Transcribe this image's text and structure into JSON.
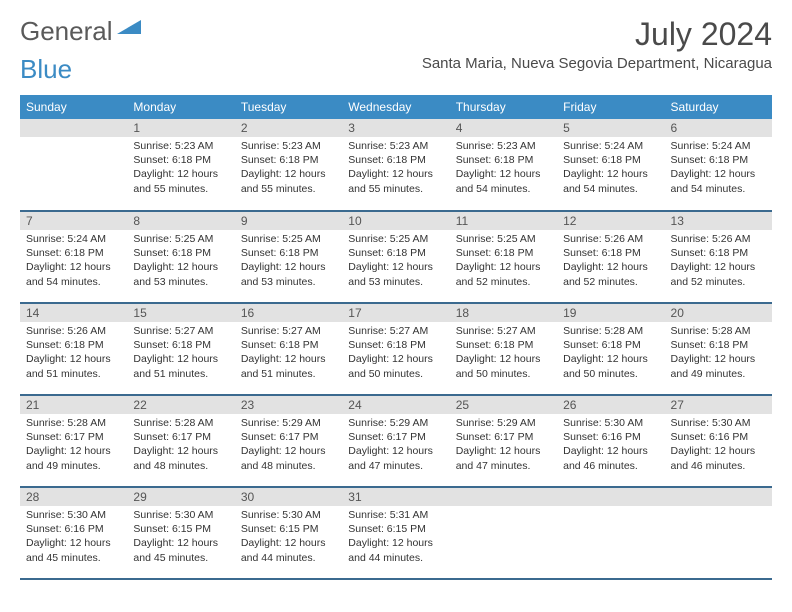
{
  "brand": {
    "part1": "General",
    "part2": "Blue"
  },
  "title": "July 2024",
  "location": "Santa Maria, Nueva Segovia Department, Nicaragua",
  "colors": {
    "header_bg": "#3b8bc4",
    "header_text": "#ffffff",
    "daynum_bg": "#e2e2e2",
    "row_border": "#3b6a8f",
    "text": "#333333",
    "title_text": "#4a4a4a"
  },
  "daysOfWeek": [
    "Sunday",
    "Monday",
    "Tuesday",
    "Wednesday",
    "Thursday",
    "Friday",
    "Saturday"
  ],
  "weeks": [
    [
      {
        "num": "",
        "sunrise": "",
        "sunset": "",
        "daylight": ""
      },
      {
        "num": "1",
        "sunrise": "Sunrise: 5:23 AM",
        "sunset": "Sunset: 6:18 PM",
        "daylight": "Daylight: 12 hours and 55 minutes."
      },
      {
        "num": "2",
        "sunrise": "Sunrise: 5:23 AM",
        "sunset": "Sunset: 6:18 PM",
        "daylight": "Daylight: 12 hours and 55 minutes."
      },
      {
        "num": "3",
        "sunrise": "Sunrise: 5:23 AM",
        "sunset": "Sunset: 6:18 PM",
        "daylight": "Daylight: 12 hours and 55 minutes."
      },
      {
        "num": "4",
        "sunrise": "Sunrise: 5:23 AM",
        "sunset": "Sunset: 6:18 PM",
        "daylight": "Daylight: 12 hours and 54 minutes."
      },
      {
        "num": "5",
        "sunrise": "Sunrise: 5:24 AM",
        "sunset": "Sunset: 6:18 PM",
        "daylight": "Daylight: 12 hours and 54 minutes."
      },
      {
        "num": "6",
        "sunrise": "Sunrise: 5:24 AM",
        "sunset": "Sunset: 6:18 PM",
        "daylight": "Daylight: 12 hours and 54 minutes."
      }
    ],
    [
      {
        "num": "7",
        "sunrise": "Sunrise: 5:24 AM",
        "sunset": "Sunset: 6:18 PM",
        "daylight": "Daylight: 12 hours and 54 minutes."
      },
      {
        "num": "8",
        "sunrise": "Sunrise: 5:25 AM",
        "sunset": "Sunset: 6:18 PM",
        "daylight": "Daylight: 12 hours and 53 minutes."
      },
      {
        "num": "9",
        "sunrise": "Sunrise: 5:25 AM",
        "sunset": "Sunset: 6:18 PM",
        "daylight": "Daylight: 12 hours and 53 minutes."
      },
      {
        "num": "10",
        "sunrise": "Sunrise: 5:25 AM",
        "sunset": "Sunset: 6:18 PM",
        "daylight": "Daylight: 12 hours and 53 minutes."
      },
      {
        "num": "11",
        "sunrise": "Sunrise: 5:25 AM",
        "sunset": "Sunset: 6:18 PM",
        "daylight": "Daylight: 12 hours and 52 minutes."
      },
      {
        "num": "12",
        "sunrise": "Sunrise: 5:26 AM",
        "sunset": "Sunset: 6:18 PM",
        "daylight": "Daylight: 12 hours and 52 minutes."
      },
      {
        "num": "13",
        "sunrise": "Sunrise: 5:26 AM",
        "sunset": "Sunset: 6:18 PM",
        "daylight": "Daylight: 12 hours and 52 minutes."
      }
    ],
    [
      {
        "num": "14",
        "sunrise": "Sunrise: 5:26 AM",
        "sunset": "Sunset: 6:18 PM",
        "daylight": "Daylight: 12 hours and 51 minutes."
      },
      {
        "num": "15",
        "sunrise": "Sunrise: 5:27 AM",
        "sunset": "Sunset: 6:18 PM",
        "daylight": "Daylight: 12 hours and 51 minutes."
      },
      {
        "num": "16",
        "sunrise": "Sunrise: 5:27 AM",
        "sunset": "Sunset: 6:18 PM",
        "daylight": "Daylight: 12 hours and 51 minutes."
      },
      {
        "num": "17",
        "sunrise": "Sunrise: 5:27 AM",
        "sunset": "Sunset: 6:18 PM",
        "daylight": "Daylight: 12 hours and 50 minutes."
      },
      {
        "num": "18",
        "sunrise": "Sunrise: 5:27 AM",
        "sunset": "Sunset: 6:18 PM",
        "daylight": "Daylight: 12 hours and 50 minutes."
      },
      {
        "num": "19",
        "sunrise": "Sunrise: 5:28 AM",
        "sunset": "Sunset: 6:18 PM",
        "daylight": "Daylight: 12 hours and 50 minutes."
      },
      {
        "num": "20",
        "sunrise": "Sunrise: 5:28 AM",
        "sunset": "Sunset: 6:18 PM",
        "daylight": "Daylight: 12 hours and 49 minutes."
      }
    ],
    [
      {
        "num": "21",
        "sunrise": "Sunrise: 5:28 AM",
        "sunset": "Sunset: 6:17 PM",
        "daylight": "Daylight: 12 hours and 49 minutes."
      },
      {
        "num": "22",
        "sunrise": "Sunrise: 5:28 AM",
        "sunset": "Sunset: 6:17 PM",
        "daylight": "Daylight: 12 hours and 48 minutes."
      },
      {
        "num": "23",
        "sunrise": "Sunrise: 5:29 AM",
        "sunset": "Sunset: 6:17 PM",
        "daylight": "Daylight: 12 hours and 48 minutes."
      },
      {
        "num": "24",
        "sunrise": "Sunrise: 5:29 AM",
        "sunset": "Sunset: 6:17 PM",
        "daylight": "Daylight: 12 hours and 47 minutes."
      },
      {
        "num": "25",
        "sunrise": "Sunrise: 5:29 AM",
        "sunset": "Sunset: 6:17 PM",
        "daylight": "Daylight: 12 hours and 47 minutes."
      },
      {
        "num": "26",
        "sunrise": "Sunrise: 5:30 AM",
        "sunset": "Sunset: 6:16 PM",
        "daylight": "Daylight: 12 hours and 46 minutes."
      },
      {
        "num": "27",
        "sunrise": "Sunrise: 5:30 AM",
        "sunset": "Sunset: 6:16 PM",
        "daylight": "Daylight: 12 hours and 46 minutes."
      }
    ],
    [
      {
        "num": "28",
        "sunrise": "Sunrise: 5:30 AM",
        "sunset": "Sunset: 6:16 PM",
        "daylight": "Daylight: 12 hours and 45 minutes."
      },
      {
        "num": "29",
        "sunrise": "Sunrise: 5:30 AM",
        "sunset": "Sunset: 6:15 PM",
        "daylight": "Daylight: 12 hours and 45 minutes."
      },
      {
        "num": "30",
        "sunrise": "Sunrise: 5:30 AM",
        "sunset": "Sunset: 6:15 PM",
        "daylight": "Daylight: 12 hours and 44 minutes."
      },
      {
        "num": "31",
        "sunrise": "Sunrise: 5:31 AM",
        "sunset": "Sunset: 6:15 PM",
        "daylight": "Daylight: 12 hours and 44 minutes."
      },
      {
        "num": "",
        "sunrise": "",
        "sunset": "",
        "daylight": ""
      },
      {
        "num": "",
        "sunrise": "",
        "sunset": "",
        "daylight": ""
      },
      {
        "num": "",
        "sunrise": "",
        "sunset": "",
        "daylight": ""
      }
    ]
  ]
}
